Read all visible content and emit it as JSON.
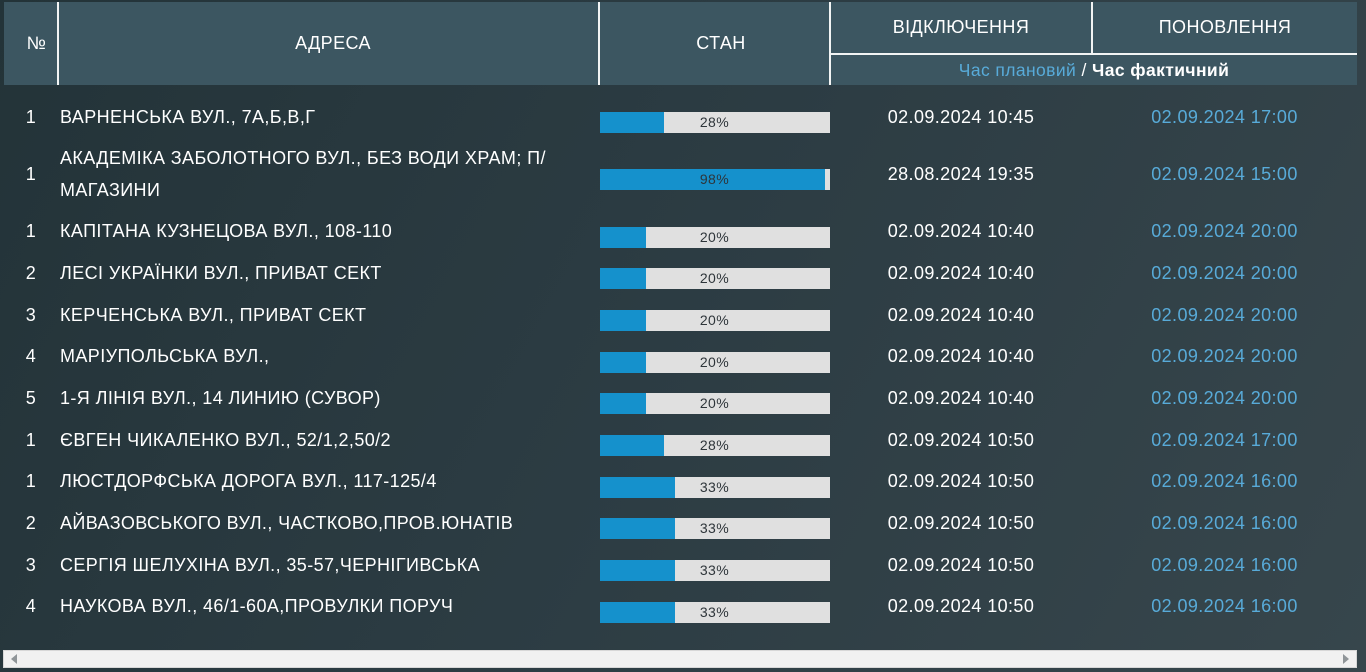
{
  "table": {
    "header": {
      "num": "№",
      "address": "АДРЕСА",
      "state": "СТАН",
      "disconnection": "ВІДКЛЮЧЕННЯ",
      "restoration": "ПОНОВЛЕННЯ"
    },
    "subheader": {
      "planned": "Час плановий",
      "separator": " / ",
      "actual": "Час фактичний"
    },
    "rows": [
      {
        "num": "1",
        "address": "ВАРНЕНСЬКА ВУЛ., 7А,Б,В,Г",
        "percent": 28,
        "disconnection": "02.09.2024 10:45",
        "restoration": "02.09.2024 17:00"
      },
      {
        "num": "1",
        "address": "АКАДЕМІКА ЗАБОЛОТНОГО ВУЛ., БЕЗ ВОДИ ХРАМ; П/МАГАЗИНИ",
        "percent": 98,
        "disconnection": "28.08.2024 19:35",
        "restoration": "02.09.2024 15:00"
      },
      {
        "num": "1",
        "address": "КАПІТАНА КУЗНЕЦОВА ВУЛ., 108-110",
        "percent": 20,
        "disconnection": "02.09.2024 10:40",
        "restoration": "02.09.2024 20:00"
      },
      {
        "num": "2",
        "address": "ЛЕСІ УКРАЇНКИ ВУЛ., ПРИВАТ СЕКТ",
        "percent": 20,
        "disconnection": "02.09.2024 10:40",
        "restoration": "02.09.2024 20:00"
      },
      {
        "num": "3",
        "address": "КЕРЧЕНСЬКА ВУЛ., ПРИВАТ СЕКТ",
        "percent": 20,
        "disconnection": "02.09.2024 10:40",
        "restoration": "02.09.2024 20:00"
      },
      {
        "num": "4",
        "address": "МАРІУПОЛЬСЬКА ВУЛ.,",
        "percent": 20,
        "disconnection": "02.09.2024 10:40",
        "restoration": "02.09.2024 20:00"
      },
      {
        "num": "5",
        "address": "1-Я ЛІНІЯ ВУЛ., 14 ЛИНИЮ (СУВОР)",
        "percent": 20,
        "disconnection": "02.09.2024 10:40",
        "restoration": "02.09.2024 20:00"
      },
      {
        "num": "1",
        "address": "ЄВГЕН ЧИКАЛЕНКО ВУЛ., 52/1,2,50/2",
        "percent": 28,
        "disconnection": "02.09.2024 10:50",
        "restoration": "02.09.2024 17:00"
      },
      {
        "num": "1",
        "address": "ЛЮСТДОРФСЬКА ДОРОГА ВУЛ., 117-125/4",
        "percent": 33,
        "disconnection": "02.09.2024 10:50",
        "restoration": "02.09.2024 16:00"
      },
      {
        "num": "2",
        "address": "АЙВАЗОВСЬКОГО ВУЛ., ЧАСТКОВО,ПРОВ.ЮНАТІВ",
        "percent": 33,
        "disconnection": "02.09.2024 10:50",
        "restoration": "02.09.2024 16:00"
      },
      {
        "num": "3",
        "address": "СЕРГІЯ ШЕЛУХІНА ВУЛ., 35-57,ЧЕРНІГИВСЬКА",
        "percent": 33,
        "disconnection": "02.09.2024 10:50",
        "restoration": "02.09.2024 16:00"
      },
      {
        "num": "4",
        "address": "НАУКОВА ВУЛ., 46/1-60А,ПРОВУЛКИ ПОРУЧ",
        "percent": 33,
        "disconnection": "02.09.2024 10:50",
        "restoration": "02.09.2024 16:00"
      }
    ]
  },
  "colors": {
    "header_bg": "#3c5661",
    "page_bg_dark": "#233338",
    "page_bg_light": "#37464c",
    "bar_fill": "#1591cc",
    "bar_track": "#e0e0e0",
    "accent_blue_text": "#58abd9",
    "text": "#ffffff"
  },
  "scrollbar": {
    "orientation": "horizontal",
    "left_arrow": "left-arrow",
    "right_arrow": "right-arrow"
  }
}
